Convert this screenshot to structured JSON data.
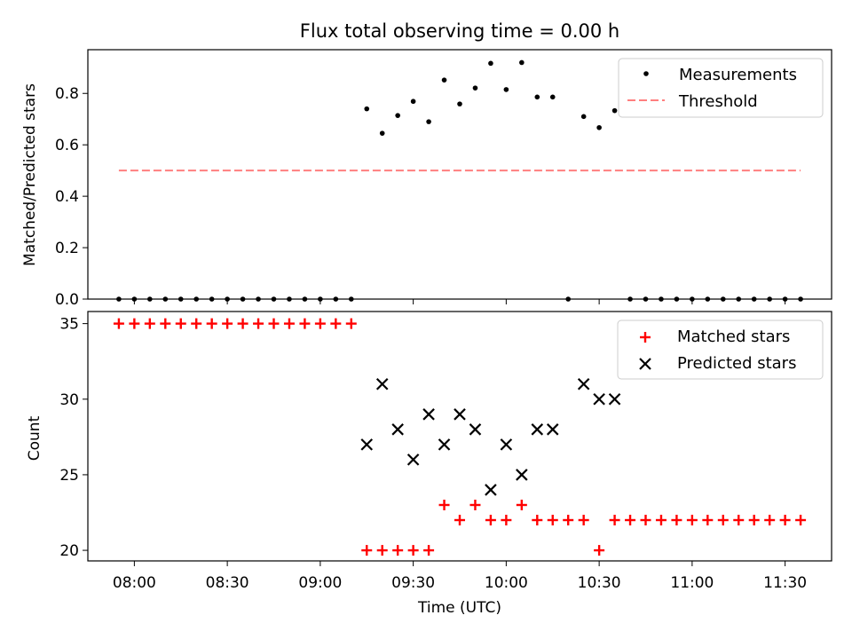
{
  "chart_data": [
    {
      "type": "scatter",
      "title": "Flux total observing time = 0.00 h",
      "ylabel": "Matched/Predicted stars",
      "xlabel": "",
      "xlim": [
        "07:45",
        "11:45"
      ],
      "ylim": [
        0,
        0.97
      ],
      "yticks": [
        0.0,
        0.2,
        0.4,
        0.6,
        0.8
      ],
      "ytick_labels": [
        "0.0",
        "0.2",
        "0.4",
        "0.6",
        "0.8"
      ],
      "grid": false,
      "legend": {
        "placement": "top-right",
        "entries": [
          "Measurements",
          "Threshold"
        ]
      },
      "series": [
        {
          "name": "Measurements",
          "marker": "dot",
          "color": "#000000",
          "x": [
            "07:55",
            "08:00",
            "08:05",
            "08:10",
            "08:15",
            "08:20",
            "08:25",
            "08:30",
            "08:35",
            "08:40",
            "08:45",
            "08:50",
            "08:55",
            "09:00",
            "09:05",
            "09:10",
            "09:15",
            "09:20",
            "09:25",
            "09:30",
            "09:35",
            "09:40",
            "09:45",
            "09:50",
            "09:55",
            "10:00",
            "10:05",
            "10:10",
            "10:15",
            "10:20",
            "10:25",
            "10:30",
            "10:35",
            "10:40",
            "10:45",
            "10:50",
            "10:55",
            "11:00",
            "11:05",
            "11:10",
            "11:15",
            "11:20",
            "11:25",
            "11:30",
            "11:35"
          ],
          "y": [
            0,
            0,
            0,
            0,
            0,
            0,
            0,
            0,
            0,
            0,
            0,
            0,
            0,
            0,
            0,
            0,
            0.74,
            0.645,
            0.714,
            0.769,
            0.69,
            0.852,
            0.759,
            0.821,
            0.917,
            0.815,
            0.92,
            0.786,
            0.786,
            0,
            0.71,
            0.667,
            0.733,
            0,
            0,
            0,
            0,
            0,
            0,
            0,
            0,
            0,
            0,
            0,
            0
          ]
        },
        {
          "name": "Threshold",
          "style": "dashed",
          "color": "#ff7f7f",
          "x": [
            "07:55",
            "11:35"
          ],
          "y": [
            0.5,
            0.5
          ]
        }
      ]
    },
    {
      "type": "scatter",
      "title": "",
      "ylabel": "Count",
      "xlabel": "Time (UTC)",
      "xlim": [
        "07:45",
        "11:45"
      ],
      "ylim": [
        19.3,
        35.8
      ],
      "yticks": [
        20,
        25,
        30,
        35
      ],
      "ytick_labels": [
        "20",
        "25",
        "30",
        "35"
      ],
      "xticks": [
        "08:00",
        "08:30",
        "09:00",
        "09:30",
        "10:00",
        "10:30",
        "11:00",
        "11:30"
      ],
      "xtick_labels": [
        "08:00",
        "08:30",
        "09:00",
        "09:30",
        "10:00",
        "10:30",
        "11:00",
        "11:30"
      ],
      "grid": false,
      "legend": {
        "placement": "top-right",
        "entries": [
          "Matched stars",
          "Predicted stars"
        ]
      },
      "series": [
        {
          "name": "Matched stars",
          "marker": "plus",
          "color": "#ff0000",
          "x": [
            "07:55",
            "08:00",
            "08:05",
            "08:10",
            "08:15",
            "08:20",
            "08:25",
            "08:30",
            "08:35",
            "08:40",
            "08:45",
            "08:50",
            "08:55",
            "09:00",
            "09:05",
            "09:10",
            "09:15",
            "09:20",
            "09:25",
            "09:30",
            "09:35",
            "09:40",
            "09:45",
            "09:50",
            "09:55",
            "10:00",
            "10:05",
            "10:10",
            "10:15",
            "10:20",
            "10:25",
            "10:30",
            "10:35",
            "10:40",
            "10:45",
            "10:50",
            "10:55",
            "11:00",
            "11:05",
            "11:10",
            "11:15",
            "11:20",
            "11:25",
            "11:30",
            "11:35"
          ],
          "y": [
            35,
            35,
            35,
            35,
            35,
            35,
            35,
            35,
            35,
            35,
            35,
            35,
            35,
            35,
            35,
            35,
            20,
            20,
            20,
            20,
            20,
            23,
            22,
            23,
            22,
            22,
            23,
            22,
            22,
            22,
            22,
            20,
            22,
            22,
            22,
            22,
            22,
            22,
            22,
            22,
            22,
            22,
            22,
            22,
            22
          ]
        },
        {
          "name": "Predicted stars",
          "marker": "x",
          "color": "#000000",
          "x": [
            "09:15",
            "09:20",
            "09:25",
            "09:30",
            "09:35",
            "09:40",
            "09:45",
            "09:50",
            "09:55",
            "10:00",
            "10:05",
            "10:10",
            "10:15",
            "10:25",
            "10:30",
            "10:35"
          ],
          "y": [
            27,
            31,
            28,
            26,
            29,
            27,
            29,
            28,
            24,
            27,
            25,
            28,
            28,
            31,
            30,
            30
          ]
        }
      ]
    }
  ]
}
